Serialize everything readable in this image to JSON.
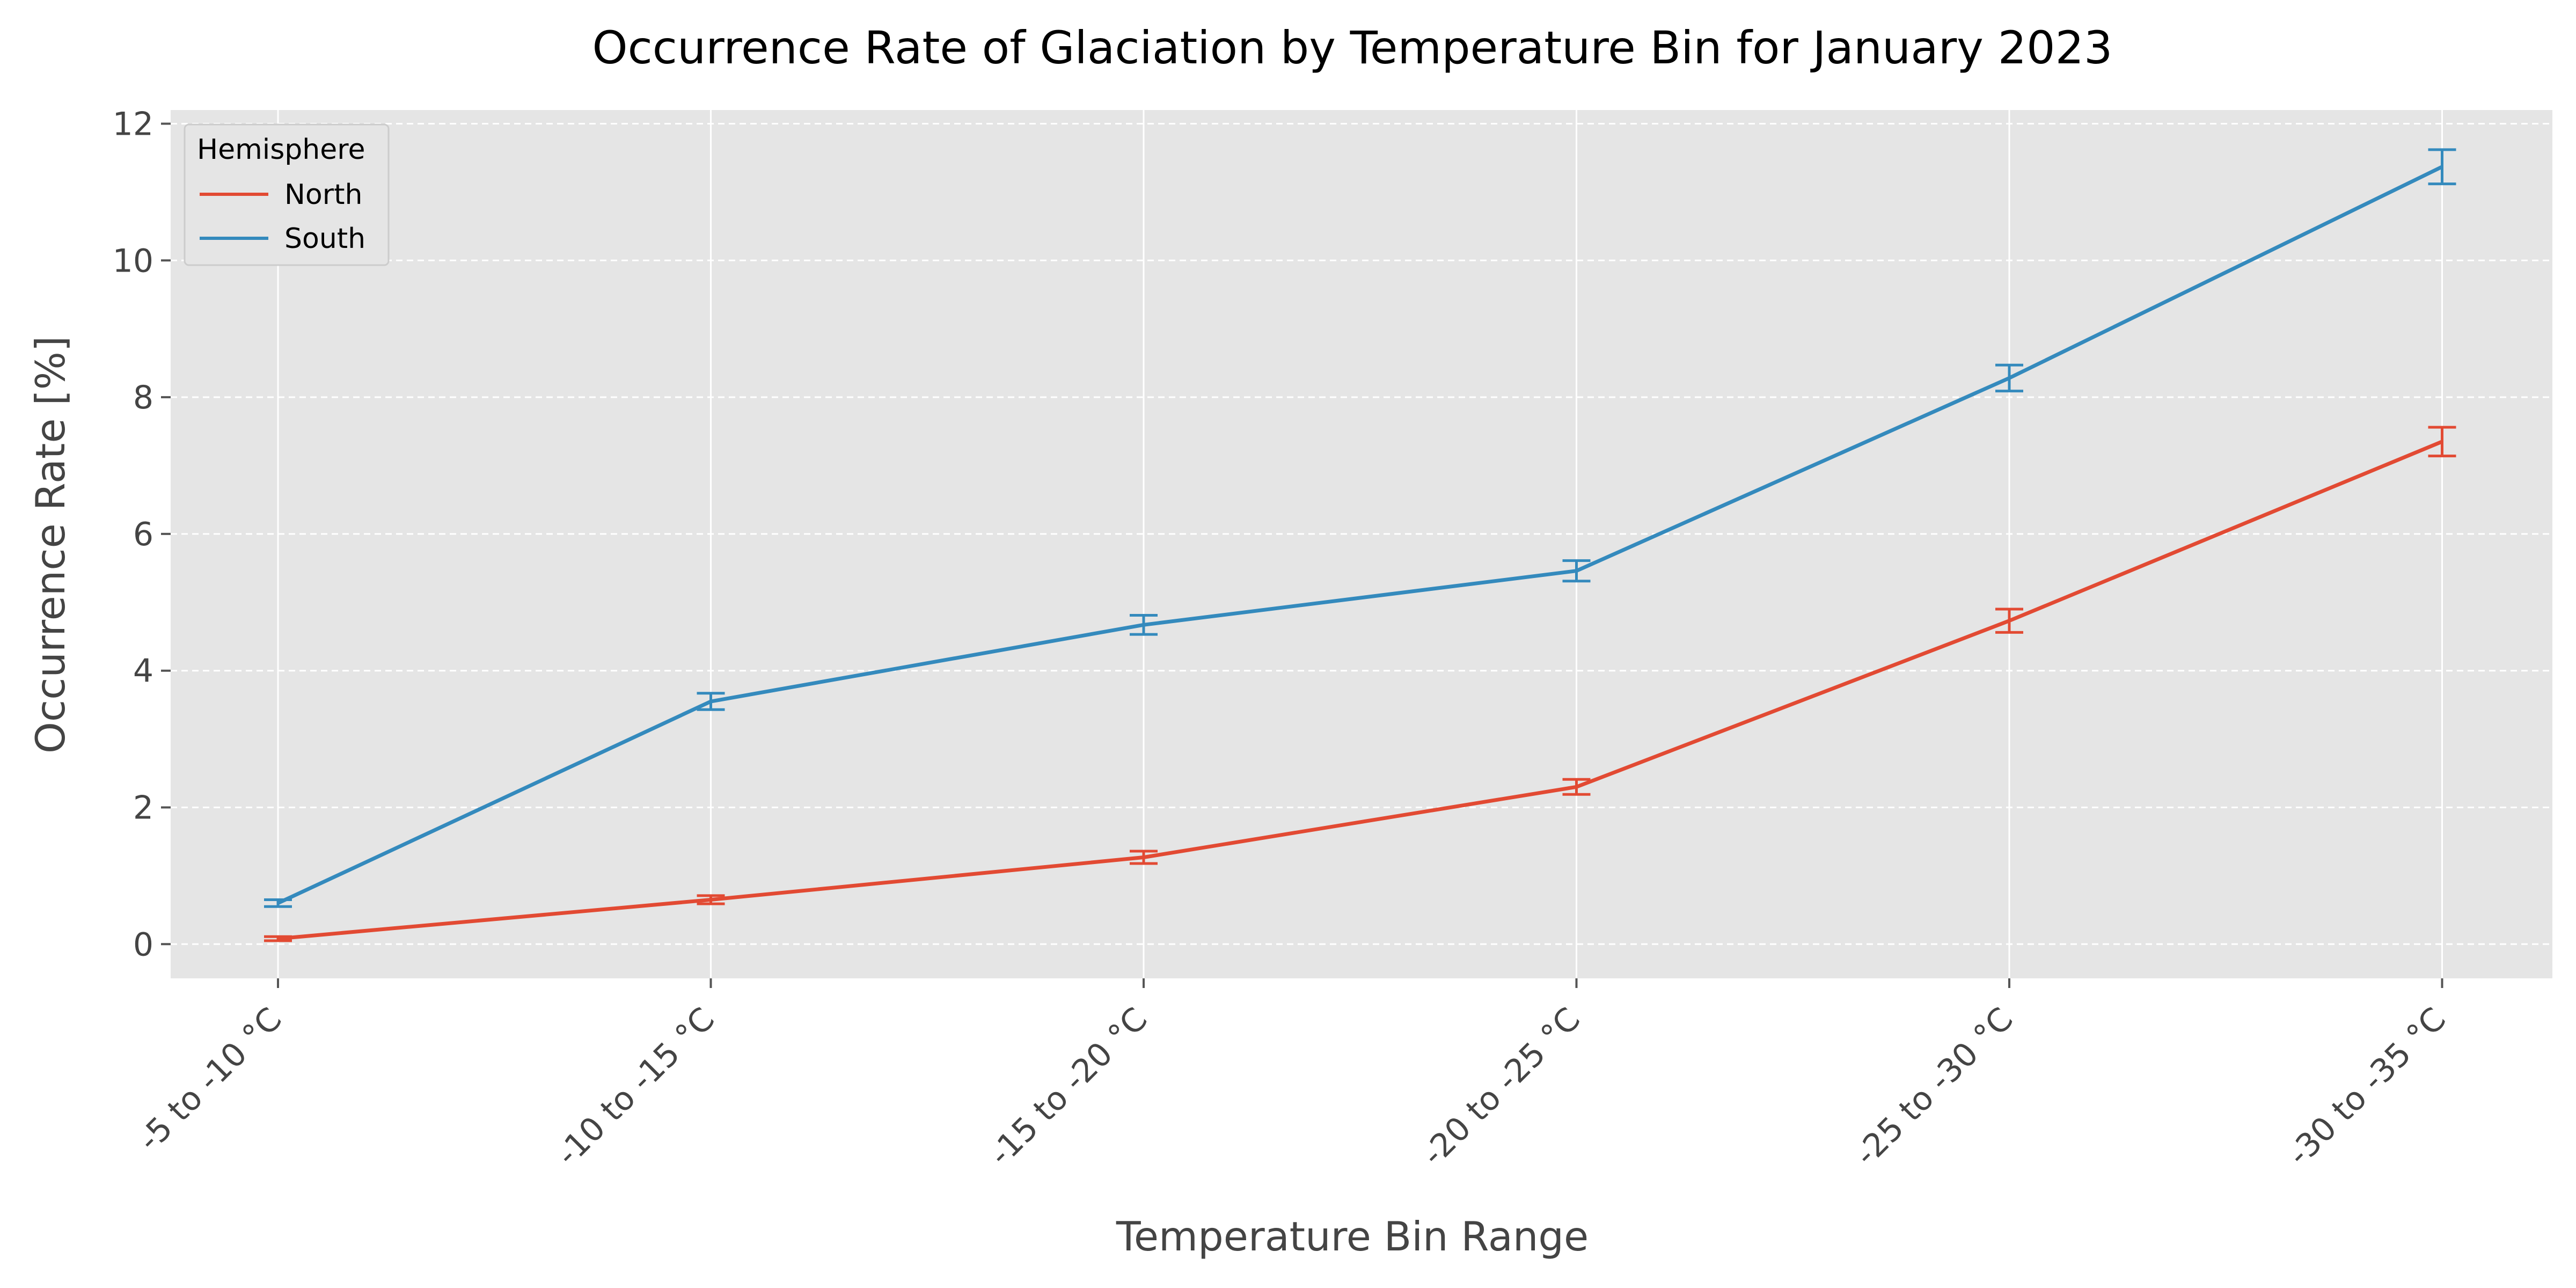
{
  "chart_data": {
    "type": "line",
    "title": "Occurrence Rate of Glaciation by Temperature Bin for January 2023",
    "xlabel": "Temperature Bin Range",
    "ylabel": "Occurrence Rate [%]",
    "categories": [
      "-5 to -10 °C",
      "-10 to -15 °C",
      "-15 to -20 °C",
      "-20 to -25 °C",
      "-25 to -30 °C",
      "-30 to -35 °C"
    ],
    "ylim": [
      -0.5,
      12.2
    ],
    "yticks": [
      0,
      2,
      4,
      6,
      8,
      10,
      12
    ],
    "grid": true,
    "legend": {
      "title": "Hemisphere",
      "placement": "top-left"
    },
    "series": [
      {
        "name": "North",
        "color": "#E24A33",
        "values": [
          0.08,
          0.65,
          1.27,
          2.3,
          4.73,
          7.35
        ],
        "errors": [
          0.03,
          0.06,
          0.09,
          0.11,
          0.17,
          0.21
        ]
      },
      {
        "name": "South",
        "color": "#348ABD",
        "values": [
          0.6,
          3.55,
          4.67,
          5.46,
          8.28,
          11.37
        ],
        "errors": [
          0.05,
          0.12,
          0.14,
          0.15,
          0.19,
          0.25
        ]
      }
    ]
  },
  "colors": {
    "plot_background": "#E5E5E5",
    "grid": "#FFFFFF",
    "text": "#444444"
  }
}
